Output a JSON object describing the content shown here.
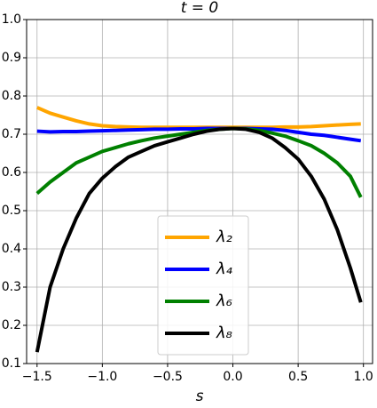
{
  "chart_data": {
    "type": "line",
    "title": "t = 0",
    "x_label": "s",
    "x": [
      -1.5,
      -1.4,
      -1.3,
      -1.2,
      -1.1,
      -1.0,
      -0.9,
      -0.8,
      -0.7,
      -0.6,
      -0.5,
      -0.4,
      -0.3,
      -0.2,
      -0.1,
      0.0,
      0.1,
      0.2,
      0.3,
      0.4,
      0.5,
      0.6,
      0.7,
      0.8,
      0.9,
      0.98
    ],
    "series": [
      {
        "name": "λ₂",
        "color": "#ffa500",
        "values": [
          0.77,
          0.755,
          0.745,
          0.735,
          0.727,
          0.722,
          0.72,
          0.719,
          0.718,
          0.718,
          0.718,
          0.718,
          0.718,
          0.718,
          0.718,
          0.718,
          0.718,
          0.718,
          0.718,
          0.719,
          0.719,
          0.72,
          0.722,
          0.724,
          0.726,
          0.727
        ]
      },
      {
        "name": "λ₄",
        "color": "#0000ff",
        "values": [
          0.708,
          0.706,
          0.707,
          0.707,
          0.708,
          0.709,
          0.71,
          0.711,
          0.712,
          0.713,
          0.713,
          0.714,
          0.714,
          0.715,
          0.715,
          0.715,
          0.715,
          0.714,
          0.713,
          0.71,
          0.705,
          0.7,
          0.697,
          0.692,
          0.687,
          0.683
        ]
      },
      {
        "name": "λ₆",
        "color": "#008000",
        "values": [
          0.545,
          0.575,
          0.6,
          0.625,
          0.64,
          0.655,
          0.665,
          0.675,
          0.683,
          0.69,
          0.695,
          0.7,
          0.705,
          0.71,
          0.713,
          0.715,
          0.714,
          0.71,
          0.703,
          0.695,
          0.683,
          0.67,
          0.65,
          0.625,
          0.59,
          0.535
        ]
      },
      {
        "name": "λ₈",
        "color": "#000000",
        "values": [
          0.13,
          0.3,
          0.4,
          0.48,
          0.545,
          0.585,
          0.615,
          0.64,
          0.655,
          0.67,
          0.68,
          0.69,
          0.7,
          0.708,
          0.713,
          0.715,
          0.713,
          0.705,
          0.69,
          0.665,
          0.635,
          0.59,
          0.53,
          0.45,
          0.35,
          0.26
        ]
      }
    ],
    "xlim": [
      -1.58,
      1.07
    ],
    "ylim": [
      0.1,
      1.0
    ],
    "xticks": [
      {
        "value": -1.5,
        "label": "−1.5"
      },
      {
        "value": -1,
        "label": "−1.0"
      },
      {
        "value": -0.5,
        "label": "−0.5"
      },
      {
        "value": 0,
        "label": "0.0"
      },
      0.5,
      {
        "value": 1,
        "label": "1.0"
      }
    ],
    "yticks": [
      0.1,
      0.2,
      0.3,
      0.4,
      0.5,
      0.6,
      0.7,
      0.8,
      0.9,
      {
        "value": 1,
        "label": "1.0"
      }
    ],
    "grid": true,
    "legend": "lower center"
  }
}
